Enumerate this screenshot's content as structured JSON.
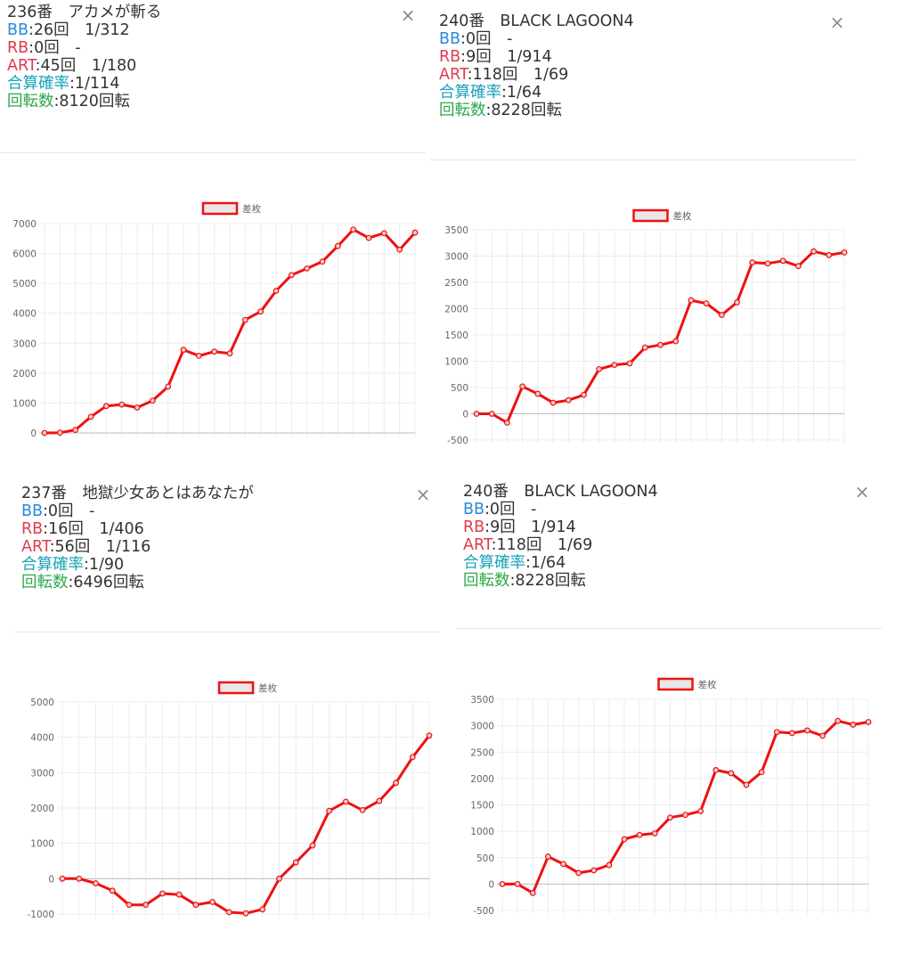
{
  "colors": {
    "bb": "#2a8ad9",
    "rb": "#e0394f",
    "art": "#e0394f",
    "total": "#1aa1b8",
    "spins": "#2aa84a",
    "line": "#ee1111"
  },
  "panels": [
    {
      "title": "236番　アカメが斬る",
      "bb_label": "BB",
      "bb_value": ":26回　1/312",
      "rb_label": "RB",
      "rb_value": ":0回　-",
      "art_label": "ART",
      "art_value": ":45回　1/180",
      "total_label": "合算確率",
      "total_value": ":1/114",
      "spins_label": "回転数",
      "spins_value": ":8120回転",
      "close_icon": "×",
      "chart_data": {
        "type": "line",
        "legend": "差枚",
        "legend_position": "top",
        "ylim": [
          0,
          7000
        ],
        "yticks": [
          "0",
          "1000",
          "2000",
          "3000",
          "4000",
          "5000",
          "6000",
          "7000"
        ],
        "series": [
          {
            "name": "差枚",
            "values": [
              0,
              10,
              100,
              540,
              900,
              950,
              850,
              1080,
              1550,
              2780,
              2580,
              2720,
              2660,
              3780,
              4060,
              4750,
              5280,
              5500,
              5730,
              6250,
              6800,
              6520,
              6680,
              6130,
              6700
            ]
          }
        ]
      }
    },
    {
      "title": "240番　BLACK LAGOON4",
      "bb_label": "BB",
      "bb_value": ":0回　-",
      "rb_label": "RB",
      "rb_value": ":9回　1/914",
      "art_label": "ART",
      "art_value": ":118回　1/69",
      "total_label": "合算確率",
      "total_value": ":1/64",
      "spins_label": "回転数",
      "spins_value": ":8228回転",
      "close_icon": "×",
      "chart_data": {
        "type": "line",
        "legend": "差枚",
        "legend_position": "top",
        "ylim": [
          -500,
          3500
        ],
        "yticks": [
          "-500",
          "0",
          "500",
          "1000",
          "1500",
          "2000",
          "2500",
          "3000",
          "3500"
        ],
        "series": [
          {
            "name": "差枚",
            "values": [
              0,
              0,
              -170,
              520,
              380,
              210,
              260,
              360,
              850,
              930,
              960,
              1260,
              1310,
              1380,
              2160,
              2100,
              1880,
              2120,
              2880,
              2860,
              2910,
              2810,
              3090,
              3020,
              3070
            ]
          }
        ]
      }
    },
    {
      "title": "237番　地獄少女あとはあなたが",
      "bb_label": "BB",
      "bb_value": ":0回　-",
      "rb_label": "RB",
      "rb_value": ":16回　1/406",
      "art_label": "ART",
      "art_value": ":56回　1/116",
      "total_label": "合算確率",
      "total_value": ":1/90",
      "spins_label": "回転数",
      "spins_value": ":6496回転",
      "close_icon": "×",
      "chart_data": {
        "type": "line",
        "legend": "差枚",
        "legend_position": "top",
        "ylim": [
          -1000,
          5000
        ],
        "yticks": [
          "-1000",
          "0",
          "1000",
          "2000",
          "3000",
          "4000",
          "5000"
        ],
        "series": [
          {
            "name": "差枚",
            "values": [
              0,
              0,
              -130,
              -340,
              -740,
              -740,
              -420,
              -450,
              -740,
              -660,
              -950,
              -980,
              -870,
              0,
              460,
              940,
              1920,
              2180,
              1940,
              2200,
              2710,
              3440,
              4050
            ]
          }
        ]
      }
    },
    {
      "title": "240番　BLACK LAGOON4",
      "bb_label": "BB",
      "bb_value": ":0回　-",
      "rb_label": "RB",
      "rb_value": ":9回　1/914",
      "art_label": "ART",
      "art_value": ":118回　1/69",
      "total_label": "合算確率",
      "total_value": ":1/64",
      "spins_label": "回転数",
      "spins_value": ":8228回転",
      "close_icon": "×",
      "chart_data": {
        "type": "line",
        "legend": "差枚",
        "legend_position": "top",
        "ylim": [
          -500,
          3500
        ],
        "yticks": [
          "-500",
          "0",
          "500",
          "1000",
          "1500",
          "2000",
          "2500",
          "3000",
          "3500"
        ],
        "series": [
          {
            "name": "差枚",
            "values": [
              0,
              0,
              -170,
              520,
              380,
              210,
              260,
              360,
              850,
              930,
              960,
              1260,
              1310,
              1380,
              2160,
              2100,
              1880,
              2120,
              2880,
              2860,
              2910,
              2810,
              3090,
              3020,
              3070
            ]
          }
        ]
      }
    }
  ]
}
